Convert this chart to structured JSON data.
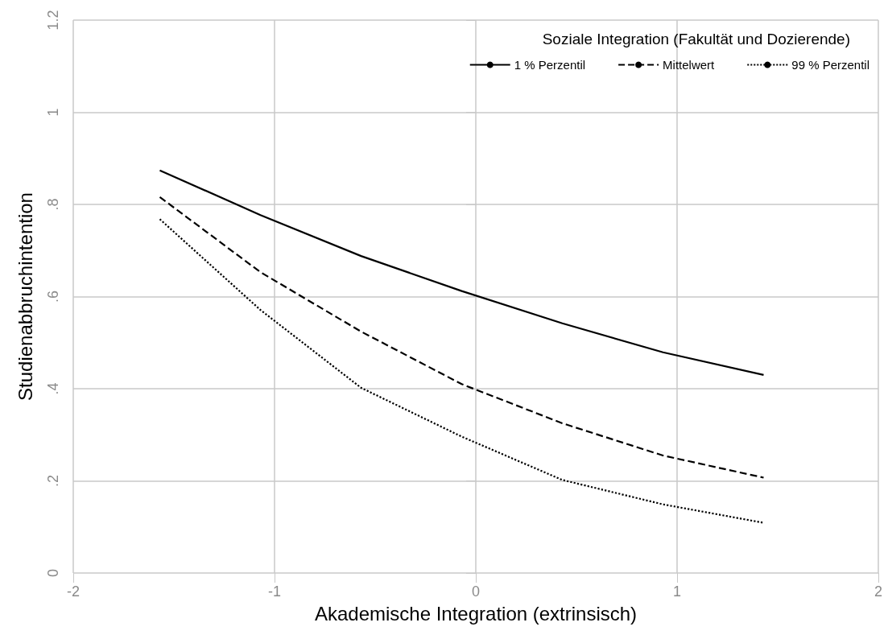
{
  "chart_data": {
    "type": "line",
    "xlabel": "Akademische Integration (extrinsisch)",
    "ylabel": "Studienabbruchintention",
    "legend_title": "Soziale Integration (Fakultät und Dozierende)",
    "x": [
      -1.57,
      -1.07,
      -0.57,
      -0.07,
      0.43,
      0.93,
      1.43
    ],
    "series": [
      {
        "name": "1 % Perzentil",
        "color": "#000000",
        "line_style": "solid",
        "values": [
          0.874,
          0.777,
          0.688,
          0.612,
          0.542,
          0.479,
          0.43
        ]
      },
      {
        "name": "Mittelwert",
        "color": "#000000",
        "line_style": "dashed",
        "values": [
          0.816,
          0.653,
          0.524,
          0.41,
          0.325,
          0.255,
          0.207
        ]
      },
      {
        "name": "99 % Perzentil",
        "color": "#000000",
        "line_style": "dotted",
        "values": [
          0.768,
          0.571,
          0.402,
          0.296,
          0.202,
          0.149,
          0.109
        ]
      }
    ],
    "xlim": [
      -2,
      2
    ],
    "xticks": [
      -2,
      -1,
      0,
      1,
      2
    ],
    "ylim": [
      0,
      1.2
    ],
    "yticks": [
      0,
      {
        "value": 0.2,
        "label": ".2"
      },
      {
        "value": 0.4,
        "label": ".4"
      },
      {
        "value": 0.6,
        "label": ".6"
      },
      {
        "value": 0.8,
        "label": ".8"
      },
      1,
      1.2
    ],
    "grid": true,
    "legend": "top right",
    "marker": "none"
  }
}
